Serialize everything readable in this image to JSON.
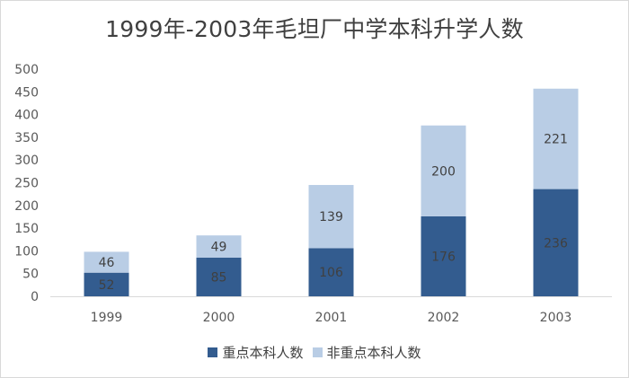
{
  "chart_data": {
    "type": "bar",
    "stacked": true,
    "title": "1999年-2003年毛坦厂中学本科升学人数",
    "categories": [
      "1999",
      "2000",
      "2001",
      "2002",
      "2003"
    ],
    "series": [
      {
        "name": "重点本科人数",
        "values": [
          52,
          85,
          106,
          176,
          236
        ],
        "color": "#335c8f"
      },
      {
        "name": "非重点本科人数",
        "values": [
          46,
          49,
          139,
          200,
          221
        ],
        "color": "#b9cde5"
      }
    ],
    "ylim": [
      0,
      500
    ],
    "yticks": [
      0,
      50,
      100,
      150,
      200,
      250,
      300,
      350,
      400,
      450,
      500
    ],
    "grid": false,
    "legend_position": "bottom",
    "data_labels": true
  }
}
